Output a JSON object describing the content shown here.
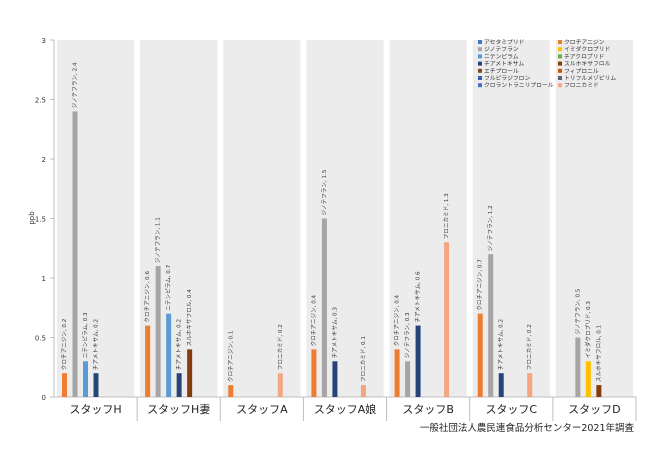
{
  "chart_data": {
    "type": "bar",
    "ylabel": "ppb",
    "ylim": [
      0,
      3
    ],
    "yticks": [
      "0",
      "0.5",
      "1",
      "1.5",
      "2",
      "2.5",
      "3"
    ],
    "categories": [
      "スタッフH",
      "スタッフH妻",
      "スタッフA",
      "スタッフA娘",
      "スタッフB",
      "スタッフC",
      "スタッフD"
    ],
    "legend_placement": "top-right",
    "series": [
      {
        "name": "アセタミプリド",
        "color": "#3c78c4",
        "values": [
          0,
          0,
          0,
          0,
          0,
          0,
          0
        ]
      },
      {
        "name": "ジノテフラン",
        "color": "#a5a5a5",
        "values": [
          2.4,
          1.1,
          0,
          1.5,
          0.3,
          1.2,
          0.5
        ]
      },
      {
        "name": "ニテンピラム",
        "color": "#5b9bd5",
        "values": [
          0.3,
          0.7,
          0,
          0,
          0,
          0,
          0
        ]
      },
      {
        "name": "チアメトキサム",
        "color": "#264478",
        "values": [
          0.2,
          0.2,
          0,
          0.3,
          0.6,
          0.2,
          0
        ]
      },
      {
        "name": "エチプロール",
        "color": "#7f4a1c",
        "values": [
          0,
          0,
          0,
          0,
          0,
          0,
          0
        ]
      },
      {
        "name": "フルピラジフロン",
        "color": "#3d5ea8",
        "values": [
          0,
          0,
          0,
          0,
          0,
          0,
          0
        ]
      },
      {
        "name": "クロラントラニリプロール",
        "color": "#4472c4",
        "values": [
          0,
          0,
          0,
          0,
          0,
          0,
          0
        ]
      },
      {
        "name": "クロチアニジン",
        "color": "#ed7d31",
        "values": [
          0.2,
          0.6,
          0.1,
          0.4,
          0.4,
          0.7,
          0
        ]
      },
      {
        "name": "イミダクロプリド",
        "color": "#ffc000",
        "values": [
          0,
          0,
          0,
          0,
          0,
          0,
          0.3
        ]
      },
      {
        "name": "チアクロプリド",
        "color": "#70ad47",
        "values": [
          0,
          0,
          0,
          0,
          0,
          0,
          0
        ]
      },
      {
        "name": "スルホキサフロル",
        "color": "#843c0c",
        "values": [
          0,
          0.4,
          0,
          0,
          0,
          0,
          0.1
        ]
      },
      {
        "name": "フィプロニル",
        "color": "#d35400",
        "values": [
          0,
          0,
          0,
          0,
          0,
          0,
          0
        ]
      },
      {
        "name": "トリフルメゾピリム",
        "color": "#636363",
        "values": [
          0,
          0,
          0,
          0,
          0,
          0,
          0
        ]
      },
      {
        "name": "フロニカミド",
        "color": "#f4a582",
        "values": [
          0,
          0,
          0.2,
          0.1,
          1.3,
          0.2,
          0
        ]
      }
    ],
    "bars": [
      {
        "group": 0,
        "series": "クロチアニジン",
        "value": 0.2,
        "label": "クロチアニジン, 0.2"
      },
      {
        "group": 0,
        "series": "ジノテフラン",
        "value": 2.4,
        "label": "ジノテフラン, 2.4"
      },
      {
        "group": 0,
        "series": "ニテンピラム",
        "value": 0.3,
        "label": "ニテンピラム, 0.3"
      },
      {
        "group": 0,
        "series": "チアメトキサム",
        "value": 0.2,
        "label": "チアメトキサム, 0.2"
      },
      {
        "group": 1,
        "series": "クロチアニジン",
        "value": 0.6,
        "label": "クロチアニジン, 0.6"
      },
      {
        "group": 1,
        "series": "ジノテフラン",
        "value": 1.1,
        "label": "ジノテフラン, 1.1"
      },
      {
        "group": 1,
        "series": "ニテンピラム",
        "value": 0.7,
        "label": "ニテンピラム, 0.7"
      },
      {
        "group": 1,
        "series": "チアメトキサム",
        "value": 0.2,
        "label": "チアメトキサム, 0.2"
      },
      {
        "group": 1,
        "series": "スルホキサフロル",
        "value": 0.4,
        "label": "スルホキサフロル, 0.4"
      },
      {
        "group": 2,
        "series": "クロチアニジン",
        "value": 0.1,
        "label": "クロチアニジン, 0.1"
      },
      {
        "group": 2,
        "series": "フロニカミド",
        "value": 0.2,
        "label": "フロニカミド, 0.2"
      },
      {
        "group": 3,
        "series": "クロチアニジン",
        "value": 0.4,
        "label": "クロチアニジン, 0.4"
      },
      {
        "group": 3,
        "series": "ジノテフラン",
        "value": 1.5,
        "label": "ジノテフラン, 1.5"
      },
      {
        "group": 3,
        "series": "チアメトキサム",
        "value": 0.3,
        "label": "チアメトキサム, 0.3"
      },
      {
        "group": 3,
        "series": "フロニカミド",
        "value": 0.1,
        "label": "フロニカミド, 0.1"
      },
      {
        "group": 4,
        "series": "クロチアニジン",
        "value": 0.4,
        "label": "クロチアニジン, 0.4"
      },
      {
        "group": 4,
        "series": "ジノテフラン",
        "value": 0.3,
        "label": "ジノテフラン, 0.3"
      },
      {
        "group": 4,
        "series": "チアメトキサム",
        "value": 0.6,
        "label": "チアメトキサム, 0.6"
      },
      {
        "group": 4,
        "series": "フロニカミド",
        "value": 1.3,
        "label": "フロニカミド, 1.3"
      },
      {
        "group": 5,
        "series": "クロチアニジン",
        "value": 0.7,
        "label": "クロチアニジン, 0.7"
      },
      {
        "group": 5,
        "series": "ジノテフラン",
        "value": 1.2,
        "label": "ジノテフラン, 1.2"
      },
      {
        "group": 5,
        "series": "チアメトキサム",
        "value": 0.2,
        "label": "チアメトキサム, 0.2"
      },
      {
        "group": 5,
        "series": "フロニカミド",
        "value": 0.2,
        "label": "フロニカミド, 0.2"
      },
      {
        "group": 6,
        "series": "ジノテフラン",
        "value": 0.5,
        "label": "ジノテフラン, 0.5"
      },
      {
        "group": 6,
        "series": "イミダクロプリド",
        "value": 0.3,
        "label": "イミダクロプリド, 0.3"
      },
      {
        "group": 6,
        "series": "スルホキサフロル",
        "value": 0.1,
        "label": "スルホキサフロル, 0.1"
      }
    ]
  },
  "footer": {
    "source_note": "一般社団法人農民連食品分析センター2021年調査"
  }
}
